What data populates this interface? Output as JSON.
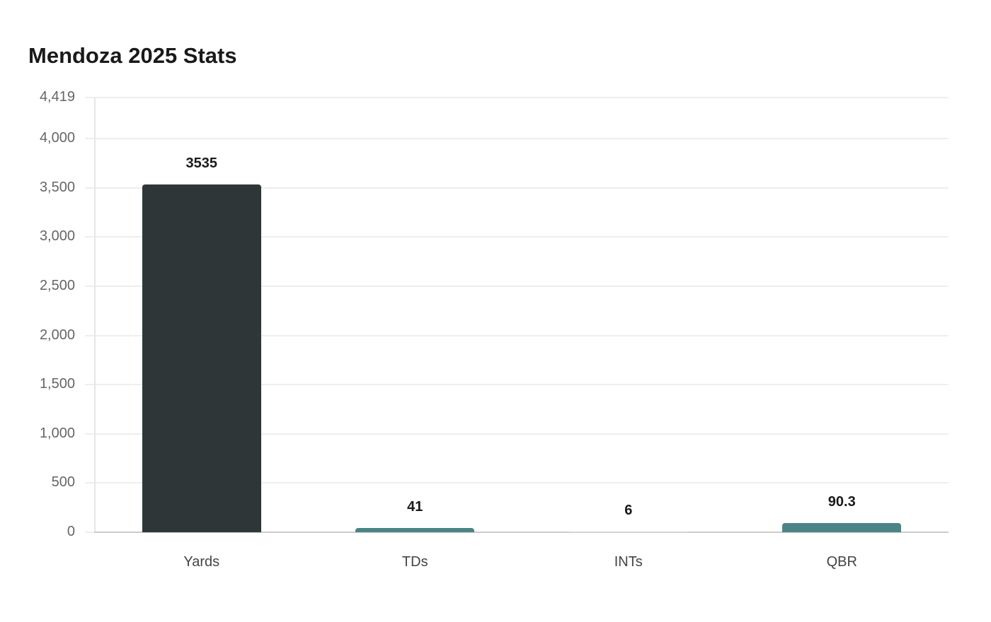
{
  "title": "Mendoza 2025 Stats",
  "y_ticks": [
    "4,419",
    "4,000",
    "3,500",
    "3,000",
    "2,500",
    "2,000",
    "1,500",
    "1,000",
    "500",
    "0"
  ],
  "bars": [
    {
      "label": "Yards",
      "value_label": "3535",
      "color": "#2e3638"
    },
    {
      "label": "TDs",
      "value_label": "41",
      "color": "#4b8486"
    },
    {
      "label": "INTs",
      "value_label": "6",
      "color": "#d9d9d9"
    },
    {
      "label": "QBR",
      "value_label": "90.3",
      "color": "#4b8486"
    }
  ],
  "chart_data": {
    "type": "bar",
    "title": "Mendoza 2025 Stats",
    "categories": [
      "Yards",
      "TDs",
      "INTs",
      "QBR"
    ],
    "values": [
      3535,
      41,
      6,
      90.3
    ],
    "xlabel": "",
    "ylabel": "",
    "ylim": [
      0,
      4419
    ],
    "y_ticks": [
      0,
      500,
      1000,
      1500,
      2000,
      2500,
      3000,
      3500,
      4000,
      4419
    ],
    "grid": true,
    "legend": null,
    "colors": [
      "#2e3638",
      "#4b8486",
      "#d9d9d9",
      "#4b8486"
    ],
    "data_labels": true
  }
}
